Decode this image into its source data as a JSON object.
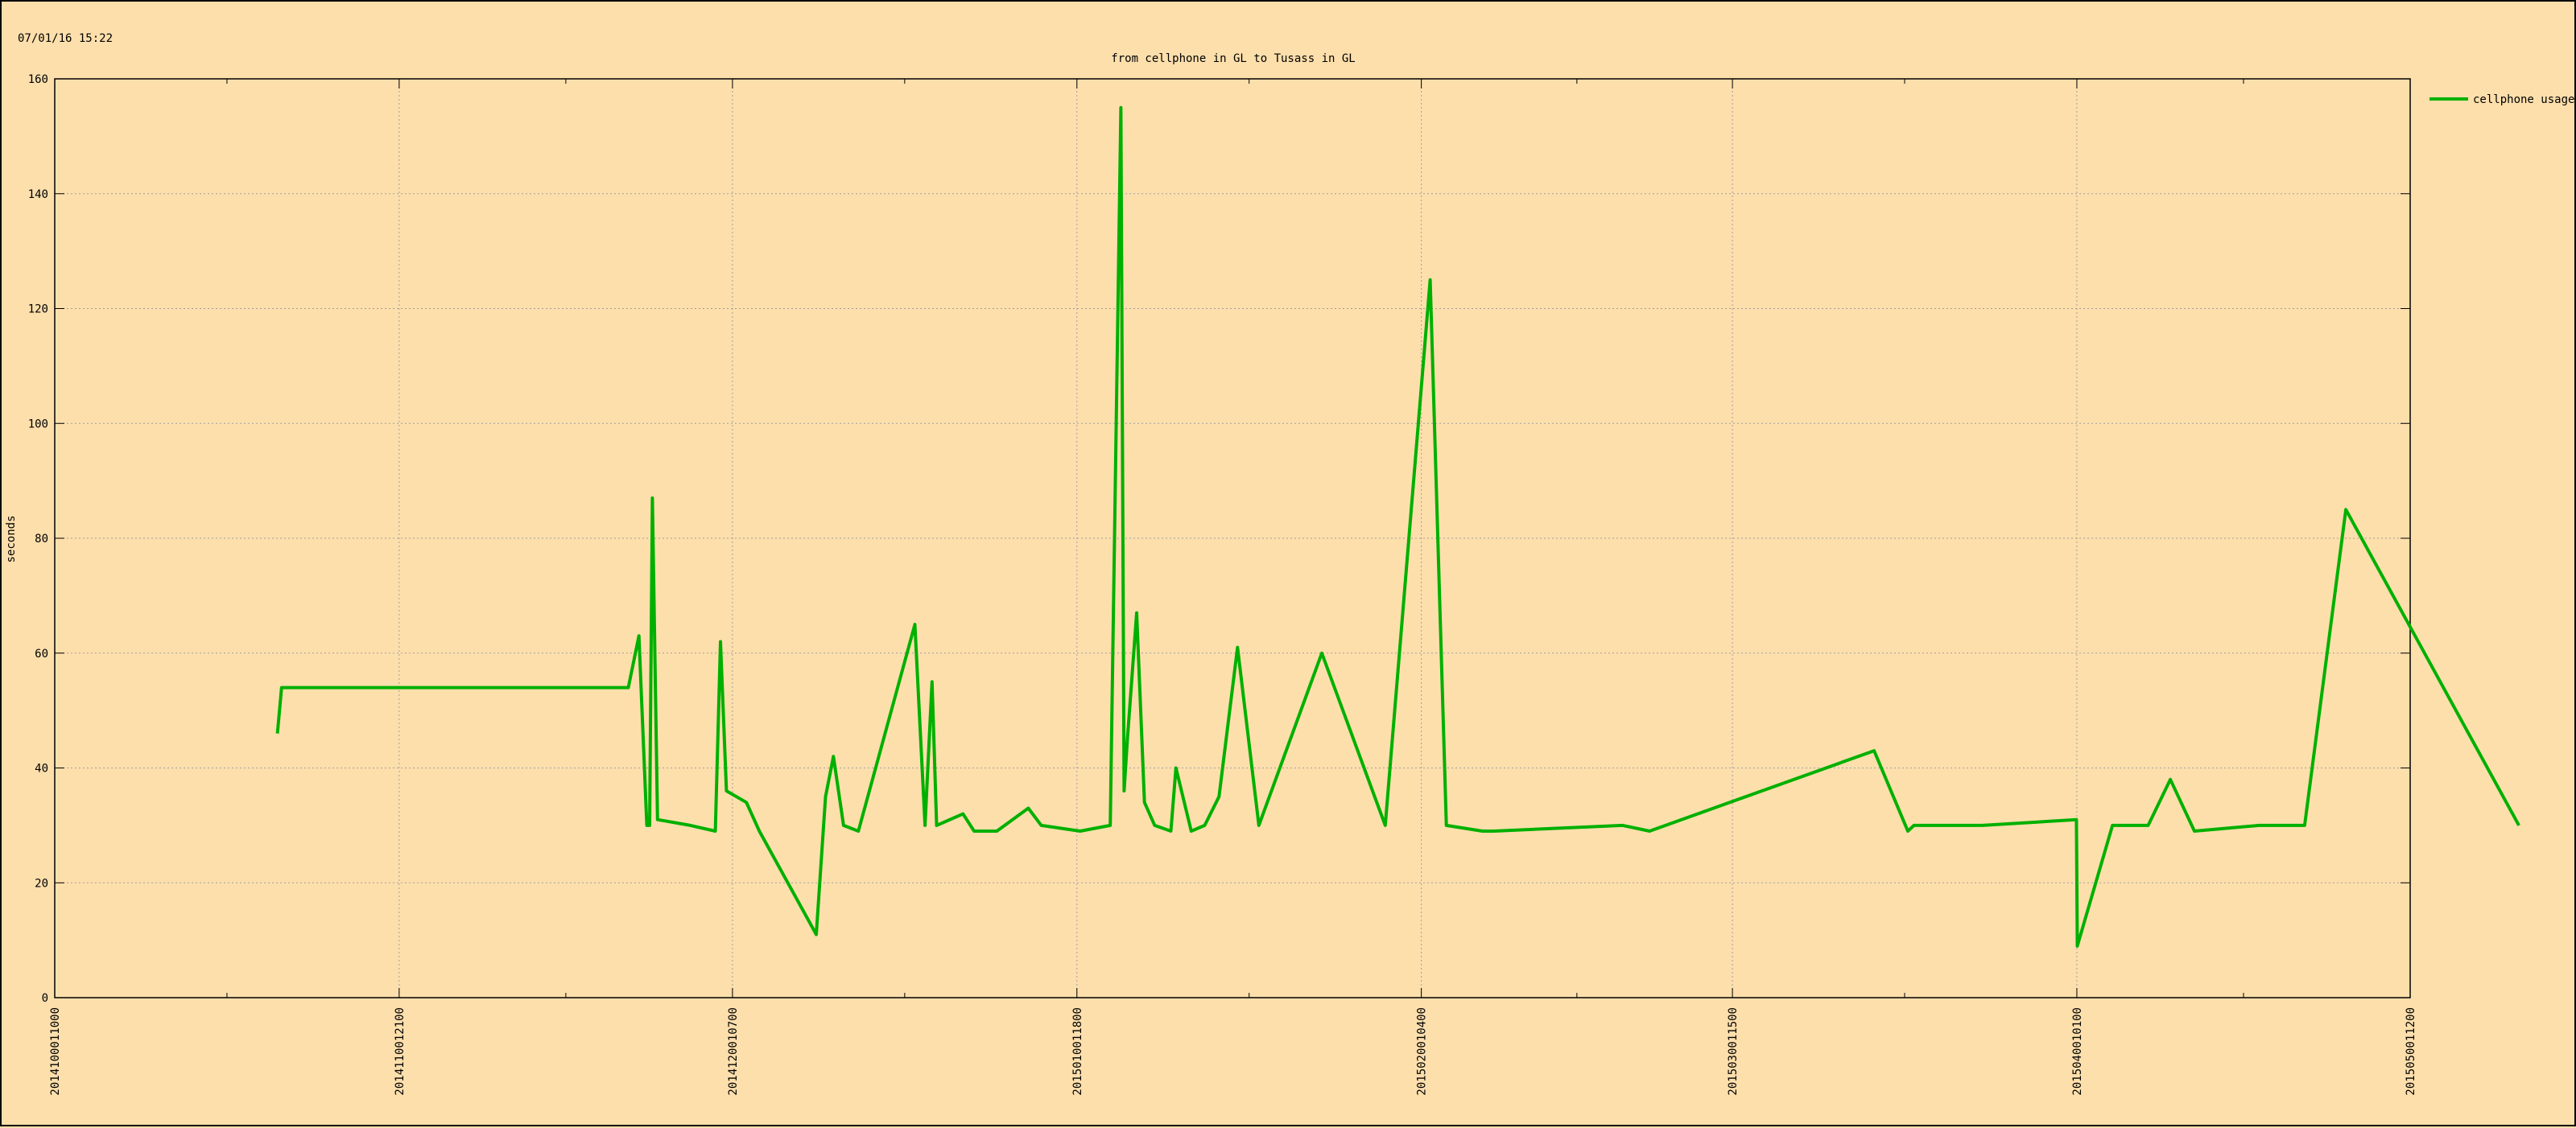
{
  "timestamp": "07/01/16 15:22",
  "colors": {
    "background": "#fddfac",
    "series": "#00b000",
    "grid": "#a0a0a0"
  },
  "chart_data": {
    "type": "line",
    "title": "from cellphone in GL to Tusass in GL",
    "xlabel": "",
    "ylabel": "seconds",
    "ylim": [
      0,
      160
    ],
    "yticks": [
      0,
      20,
      40,
      60,
      80,
      100,
      120,
      140,
      160
    ],
    "xticks": [
      "2014100011000",
      "2014110012100",
      "2014120010700",
      "2015010011800",
      "2015020010400",
      "2015030011500",
      "2015040010100",
      "2015050011200"
    ],
    "grid": true,
    "legend_position": "top-right",
    "series": [
      {
        "name": "cellphone usage",
        "color": "#00b000",
        "x": [
          "2014-10-21 01:00",
          "2014-10-21 10:00",
          "2014-11-21 15:00",
          "2014-11-22 14:00",
          "2014-11-23 07:00",
          "2014-11-23 13:00",
          "2014-11-23 19:00",
          "2014-11-24 06:00",
          "2014-11-27 05:00",
          "2014-11-29 11:00",
          "2014-11-29 22:00",
          "2014-11-30 11:00",
          "2014-12-02 06:00",
          "2014-12-03 10:00",
          "2014-12-08 13:00",
          "2014-12-09 09:00",
          "2014-12-10 02:00",
          "2014-12-11 00:00",
          "2014-12-12 08:00",
          "2014-12-17 10:00",
          "2014-12-18 08:00",
          "2014-12-18 23:00",
          "2014-12-19 09:00",
          "2014-12-21 18:00",
          "2014-12-22 18:00",
          "2014-12-24 19:00",
          "2014-12-27 15:00",
          "2014-12-28 19:00",
          "2015-01-01 07:00",
          "2015-01-04 00:00",
          "2015-01-04 23:00",
          "2015-01-05 06:00",
          "2015-01-05 13:00",
          "2015-01-06 09:00",
          "2015-01-07 02:00",
          "2015-01-08 00:00",
          "2015-01-09 11:00",
          "2015-01-09 22:00",
          "2015-01-11 07:00",
          "2015-01-12 12:00",
          "2015-01-13 19:00",
          "2015-01-15 11:00",
          "2015-01-17 09:00",
          "2015-01-23 01:00",
          "2015-01-28 18:00",
          "2015-02-01 19:00",
          "2015-02-03 06:00",
          "2015-02-06 12:00",
          "2015-02-07 12:00",
          "2015-02-19 03:00",
          "2015-02-21 13:00",
          "2015-03-13 18:00",
          "2015-03-16 19:00",
          "2015-03-17 08:00",
          "2015-03-18 14:00",
          "2015-03-23 12:00",
          "2015-03-31 23:00",
          "2015-04-01 01:00",
          "2015-04-04 05:00",
          "2015-04-07 10:00",
          "2015-04-09 10:00",
          "2015-04-11 14:00",
          "2015-04-17 10:00",
          "2015-04-21 12:00",
          "2015-04-25 05:00",
          "2015-05-10 19:00"
        ],
        "values": [
          46,
          54,
          54,
          63,
          30,
          30,
          87,
          31,
          30,
          29,
          62,
          36,
          34,
          29,
          11,
          35,
          42,
          30,
          29,
          65,
          30,
          55,
          30,
          32,
          29,
          29,
          33,
          30,
          29,
          30,
          155,
          36,
          45,
          67,
          34,
          30,
          29,
          40,
          29,
          30,
          35,
          61,
          30,
          60,
          30,
          125,
          30,
          29,
          29,
          30,
          29,
          43,
          29,
          30,
          30,
          30,
          31,
          9,
          30,
          30,
          38,
          29,
          30,
          30,
          85,
          30
        ]
      }
    ]
  }
}
